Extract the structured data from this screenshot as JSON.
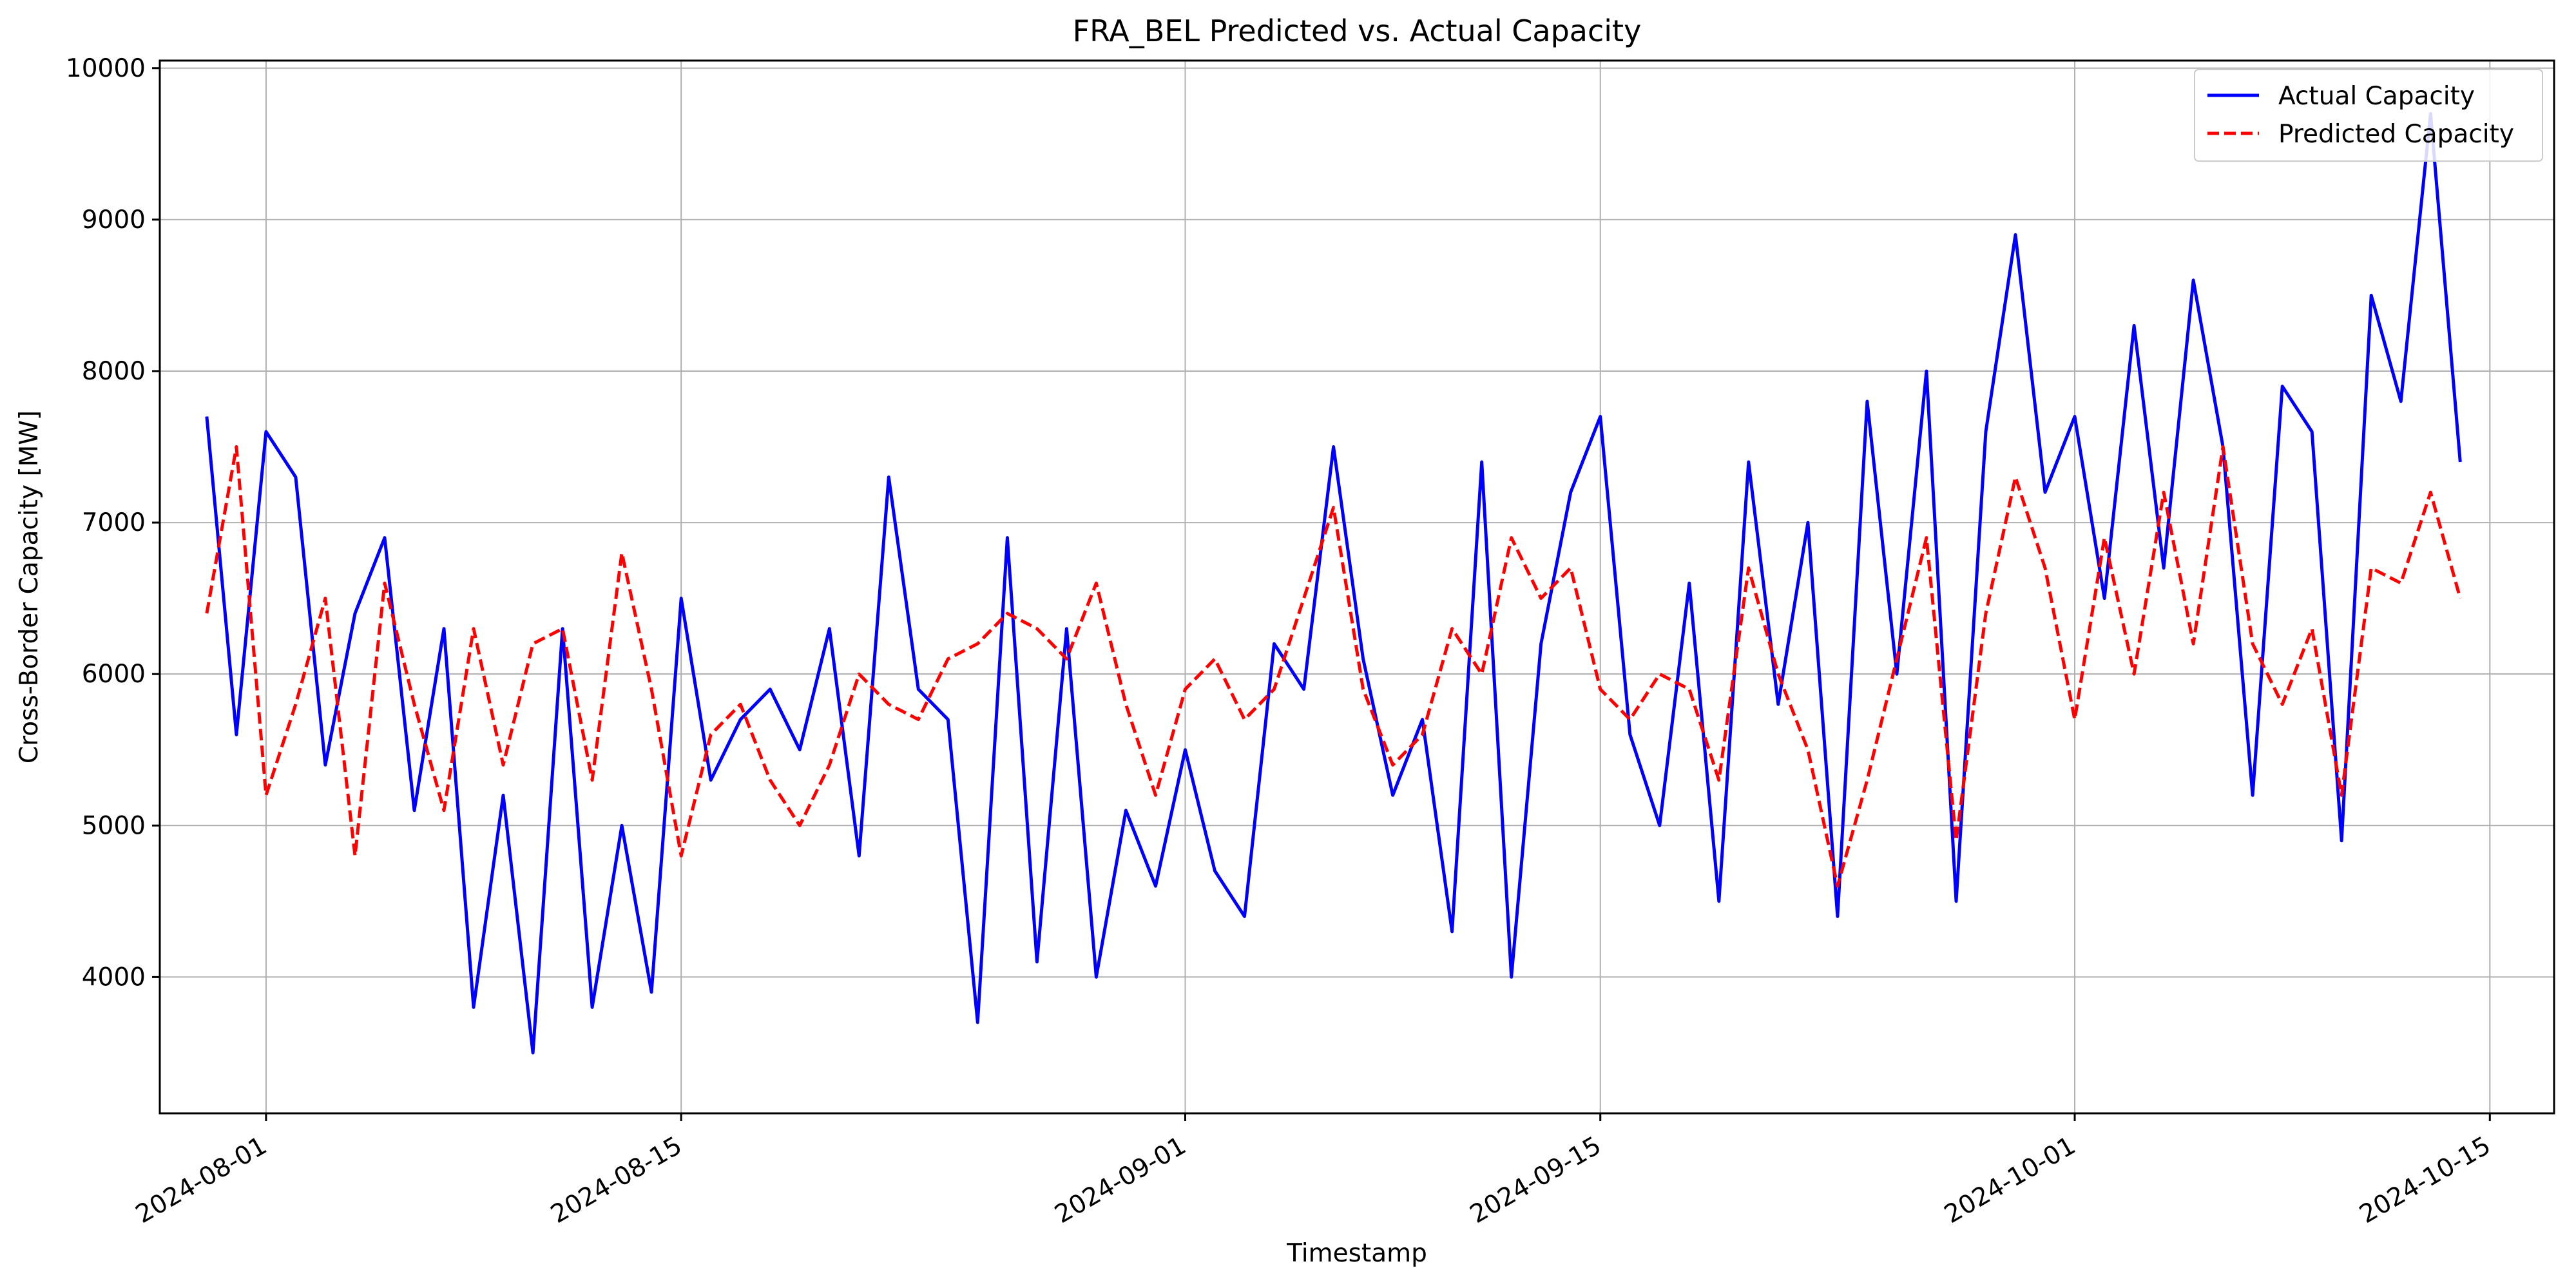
{
  "chart_data": {
    "type": "line",
    "title": "FRA_BEL Predicted vs. Actual Capacity",
    "xlabel": "Timestamp",
    "ylabel": "Cross-Border Capacity [MW]",
    "x_type": "date",
    "xlim": [
      "2024-07-28T10:00",
      "2024-10-17T04:00"
    ],
    "ylim": [
      3100,
      10050
    ],
    "xticks": [
      "2024-08-01",
      "2024-08-15",
      "2024-09-01",
      "2024-09-15",
      "2024-10-01",
      "2024-10-15"
    ],
    "yticks": [
      4000,
      5000,
      6000,
      7000,
      8000,
      9000,
      10000
    ],
    "grid": true,
    "legend_position": "top-right",
    "dates": [
      "2024-07-30",
      "2024-07-31",
      "2024-08-01",
      "2024-08-02",
      "2024-08-03",
      "2024-08-04",
      "2024-08-05",
      "2024-08-06",
      "2024-08-07",
      "2024-08-08",
      "2024-08-09",
      "2024-08-10",
      "2024-08-11",
      "2024-08-12",
      "2024-08-13",
      "2024-08-14",
      "2024-08-15",
      "2024-08-16",
      "2024-08-17",
      "2024-08-18",
      "2024-08-19",
      "2024-08-20",
      "2024-08-21",
      "2024-08-22",
      "2024-08-23",
      "2024-08-24",
      "2024-08-25",
      "2024-08-26",
      "2024-08-27",
      "2024-08-28",
      "2024-08-29",
      "2024-08-30",
      "2024-08-31",
      "2024-09-01",
      "2024-09-02",
      "2024-09-03",
      "2024-09-04",
      "2024-09-05",
      "2024-09-06",
      "2024-09-07",
      "2024-09-08",
      "2024-09-09",
      "2024-09-10",
      "2024-09-11",
      "2024-09-12",
      "2024-09-13",
      "2024-09-14",
      "2024-09-15",
      "2024-09-16",
      "2024-09-17",
      "2024-09-18",
      "2024-09-19",
      "2024-09-20",
      "2024-09-21",
      "2024-09-22",
      "2024-09-23",
      "2024-09-24",
      "2024-09-25",
      "2024-09-26",
      "2024-09-27",
      "2024-09-28",
      "2024-09-29",
      "2024-09-30",
      "2024-10-01",
      "2024-10-02",
      "2024-10-03",
      "2024-10-04",
      "2024-10-05",
      "2024-10-06",
      "2024-10-07",
      "2024-10-08",
      "2024-10-09",
      "2024-10-10",
      "2024-10-11",
      "2024-10-12",
      "2024-10-13",
      "2024-10-14"
    ],
    "series": [
      {
        "name": "Actual Capacity",
        "color": "#0000ff",
        "line_style": "solid",
        "values": [
          7700,
          5600,
          7600,
          7300,
          5400,
          6400,
          6900,
          5100,
          6300,
          3800,
          5200,
          3500,
          6300,
          3800,
          5000,
          3900,
          6500,
          5300,
          5700,
          5900,
          5500,
          6300,
          4800,
          7300,
          5900,
          5700,
          3700,
          6900,
          4100,
          6300,
          4000,
          5100,
          4600,
          5500,
          4700,
          4400,
          6200,
          5900,
          7500,
          6100,
          5200,
          5700,
          4300,
          7400,
          4000,
          6200,
          7200,
          7700,
          5600,
          5000,
          6600,
          4500,
          7400,
          5800,
          7000,
          4400,
          7800,
          6000,
          8000,
          4500,
          7600,
          8900,
          7200,
          7700,
          6500,
          8300,
          6700,
          8600,
          7500,
          5200,
          7900,
          7600,
          4900,
          8500,
          7800,
          9700,
          7400
        ]
      },
      {
        "name": "Predicted Capacity",
        "color": "#ff0000",
        "line_style": "dashed",
        "values": [
          6400,
          7500,
          5200,
          5800,
          6500,
          4800,
          6600,
          5800,
          5100,
          6300,
          5400,
          6200,
          6300,
          5300,
          6800,
          5900,
          4800,
          5600,
          5800,
          5300,
          5000,
          5400,
          6000,
          5800,
          5700,
          6100,
          6200,
          6400,
          6300,
          6100,
          6600,
          5800,
          5200,
          5900,
          6100,
          5700,
          5900,
          6500,
          7100,
          5900,
          5400,
          5600,
          6300,
          6000,
          6900,
          6500,
          6700,
          5900,
          5700,
          6000,
          5900,
          5300,
          6700,
          6000,
          5500,
          4600,
          5300,
          6100,
          6900,
          4900,
          6400,
          7300,
          6700,
          5700,
          6900,
          6000,
          7200,
          6200,
          7500,
          6200,
          5800,
          6300,
          5200,
          6700,
          6600,
          7200,
          6500
        ]
      }
    ]
  }
}
